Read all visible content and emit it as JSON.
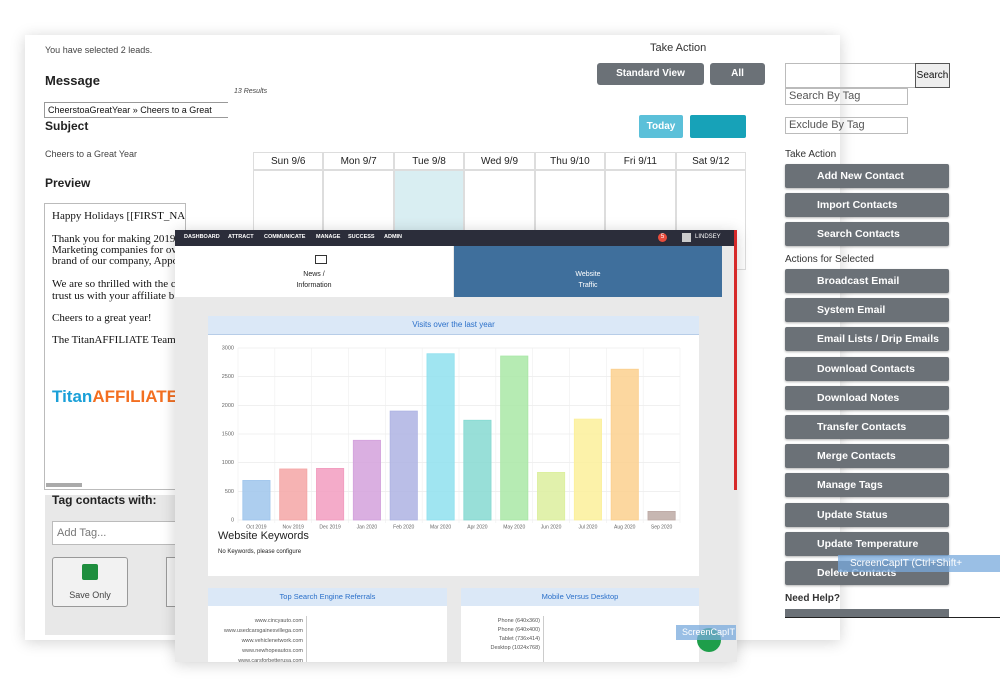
{
  "back_panel": {
    "selection_note": "You have selected 2 leads.",
    "take_action": "Take Action",
    "message_label": "Message",
    "message_select": "CheerstoaGreatYear » Cheers to a Great",
    "subject_label": "Subject",
    "subject": "Cheers to a Great Year",
    "preview_label": "Preview",
    "preview_lines": [
      "Happy Holidays [[FIRST_NAME]]!",
      "Thank you for making 2019",
      "Marketing companies for ov",
      "brand of our company, Appo",
      "We are so thrilled with the c",
      "trust us with your affiliate b",
      "Cheers to a great year!",
      "The TitanAFFILIATE Team"
    ],
    "logo": {
      "part1": "Titan",
      "part2": "AFFILIATE"
    },
    "tag_label": "Tag contacts with:",
    "tag_placeholder": "Add Tag...",
    "save_button": "Save Only"
  },
  "calendar": {
    "results": "13 Results",
    "view_button": "Standard View",
    "all_button": "All",
    "today_button": "Today",
    "days": [
      "Sun 9/6",
      "Mon 9/7",
      "Tue 9/8",
      "Wed 9/9",
      "Thu 9/10",
      "Fri 9/11",
      "Sat 9/12"
    ]
  },
  "sidebar": {
    "search_button": "Search",
    "search_by_tag": "Search By Tag",
    "exclude_by_tag": "Exclude By Tag",
    "take_action": "Take Action",
    "take_action_buttons": [
      "Add New Contact",
      "Import Contacts",
      "Search Contacts"
    ],
    "selected_heading": "Actions for Selected",
    "selected_buttons": [
      "Broadcast Email",
      "System Email",
      "Email Lists / Drip Emails",
      "Download Contacts",
      "Download Notes",
      "Transfer Contacts",
      "Merge Contacts",
      "Manage Tags",
      "Update Status",
      "Update Temperature",
      "Delete Contacts"
    ],
    "help_heading": "Need Help?"
  },
  "dashboard": {
    "nav": [
      "DASHBOARD",
      "ATTRACT",
      "COMMUNICATE",
      "MANAGE",
      "SUCCESS",
      "ADMIN"
    ],
    "alert_count": "5",
    "user": "LINDSEY",
    "tabs": [
      {
        "line1": "News /",
        "line2": "Information"
      },
      {
        "line1": "Website",
        "line2": "Traffic"
      }
    ],
    "chart_data": {
      "type": "bar",
      "title": "Visits over the last year",
      "categories": [
        "Oct 2019",
        "Nov 2019",
        "Dec 2019",
        "Jan 2020",
        "Feb 2020",
        "Mar 2020",
        "Apr 2020",
        "May 2020",
        "Jun 2020",
        "Jul 2020",
        "Aug 2020",
        "Sep 2020"
      ],
      "values": [
        690,
        890,
        900,
        1390,
        1900,
        2900,
        1740,
        2860,
        830,
        1760,
        2630,
        150
      ],
      "colors": [
        "#9fc5ec",
        "#f4a6a6",
        "#f29cbf",
        "#d3a1dc",
        "#aeb3e3",
        "#8fe0ee",
        "#86d9d1",
        "#a9e7a6",
        "#dcef9d",
        "#fbf09a",
        "#fbd08e",
        "#bdaaa5"
      ],
      "ylim": [
        0,
        3000
      ],
      "yticks": [
        0,
        500,
        1000,
        1500,
        2000,
        2500,
        3000
      ],
      "grid": true
    },
    "keywords_title": "Website Keywords",
    "keywords_note": "No Keywords, please configure",
    "referrals": {
      "title": "Top Search Engine Referrals",
      "sites": [
        "www.cincyauto.com",
        "www.usedcarsgainesvillega.com",
        "www.vehiclenetwork.com",
        "www.newhopeautos.com",
        "www.carsforbetterusa.com"
      ]
    },
    "devices": {
      "title": "Mobile Versus Desktop",
      "labels": [
        "Phone (640x360)",
        "Phone (640x400)",
        "Tablet (736x414)",
        "Desktop (1024x768)"
      ]
    }
  },
  "watermarks": [
    "ScreenCapIT  (Ctrl+Shift+",
    "ScreenCapIT"
  ]
}
